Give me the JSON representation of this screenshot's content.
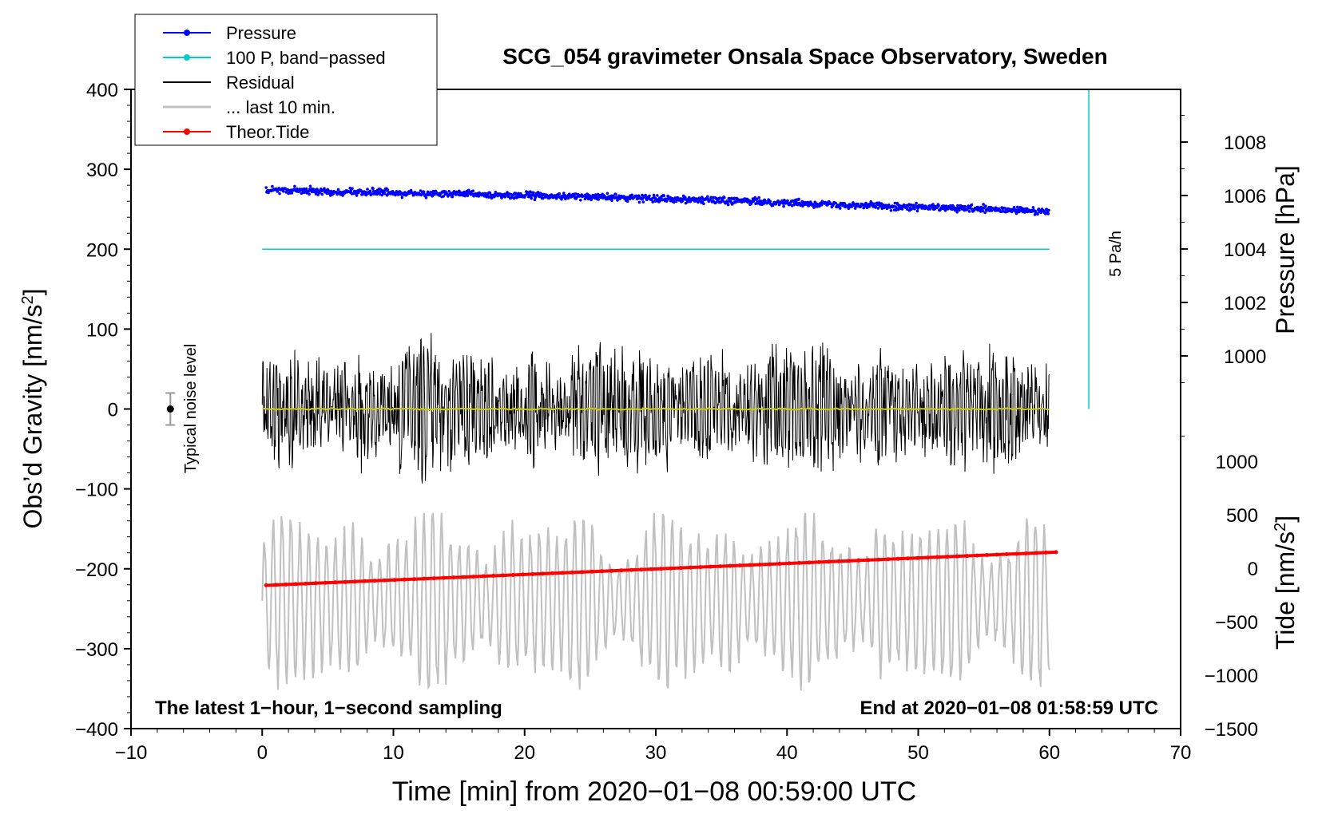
{
  "chart_data": {
    "type": "line",
    "title": "SCG_054 gravimeter Onsala Space Observatory, Sweden",
    "xlabel": "Time [min] from 2020−01−08 00:59:00 UTC",
    "ylabel_left": "Obs’d Gravity [nm/s",
    "ylabel_left_sup": "2",
    "ylabel_left_end": "]",
    "ylabel_pressure": "Pressure [hPa]",
    "ylabel_tide": "Tide [nm/s",
    "ylabel_tide_sup": "2",
    "ylabel_tide_end": "]",
    "xlim": [
      -10,
      70
    ],
    "ylim_left": [
      -400,
      400
    ],
    "pressure_ylim_labels": [
      1000,
      1008
    ],
    "tide_ylim_labels": [
      -1500,
      1000
    ],
    "x_ticks": [
      -10,
      0,
      10,
      20,
      30,
      40,
      50,
      60,
      70
    ],
    "x_tick_labels": [
      "−10",
      "0",
      "10",
      "20",
      "30",
      "40",
      "50",
      "60",
      "70"
    ],
    "y_ticks_left": [
      400,
      300,
      200,
      100,
      0,
      -100,
      -200,
      -300,
      -400
    ],
    "y_tick_labels_left": [
      "400",
      "300",
      "200",
      "100",
      "0",
      "−100",
      "−200",
      "−300",
      "−400"
    ],
    "pressure_ticks": [
      1008,
      1006,
      1004,
      1002,
      1000
    ],
    "pressure_tick_labels": [
      "1008",
      "1006",
      "1004",
      "1002",
      "1000"
    ],
    "tide_ticks": [
      1000,
      500,
      0,
      -500,
      -1000,
      -1500
    ],
    "tide_tick_labels": [
      "1000",
      "500",
      "0",
      "−500",
      "−1000",
      "−1500"
    ],
    "legend": {
      "position": "top-left",
      "entries": [
        {
          "label": "Pressure",
          "color": "#0000ff",
          "marker": true
        },
        {
          "label": "100 P, band−passed",
          "color": "#00cccc",
          "marker": true
        },
        {
          "label": "Residual",
          "color": "#000000",
          "marker": false
        },
        {
          "label": "... last 10 min.",
          "color": "#c0c0c0",
          "marker": false
        },
        {
          "label": "Theor.Tide",
          "color": "#ff0000",
          "marker": true
        }
      ]
    },
    "annotations": {
      "left_footer": "The latest 1−hour, 1−second sampling",
      "right_footer": "End at 2020−01−08 01:58:59 UTC",
      "noise_label": "Typical noise level",
      "rate_label": "5 Pa/h"
    },
    "noise_bar": {
      "x": -7,
      "center": 0,
      "halfwidth": 20
    },
    "series": [
      {
        "name": "Pressure",
        "axis": "pressure_hPa",
        "color": "#0000ff",
        "x_range": [
          0.3,
          60
        ],
        "start": 1006.2,
        "mid": 1005.9,
        "end": 1005.4,
        "scatter": 0.15
      },
      {
        "name": "100 P, band-passed",
        "axis": "gravity",
        "color": "#00cccc",
        "x_range": [
          0,
          60
        ],
        "value": 200
      },
      {
        "name": "Residual",
        "axis": "gravity",
        "color": "#000000",
        "x_range": [
          0,
          60
        ],
        "typical_amplitude": 60,
        "max": 170,
        "min": -168
      },
      {
        "name": "Residual (smoothed)",
        "axis": "gravity",
        "color": "#cccc00",
        "x_range": [
          0,
          60
        ],
        "value": 0
      },
      {
        "name": "... last 10 min.",
        "axis": "gravity",
        "color": "#c0c0c0",
        "x_range": [
          0,
          60
        ],
        "center": -240,
        "typical_amplitude": 70,
        "max": -130,
        "min": -415
      },
      {
        "name": "Theor.Tide",
        "axis": "tide_nm_s2",
        "color": "#ff0000",
        "x": [
          0.3,
          60.5
        ],
        "values": [
          -160,
          150
        ]
      },
      {
        "name": "5 Pa/h rate line",
        "axis": "gravity",
        "color": "#00cccc",
        "x": [
          63,
          63
        ],
        "values": [
          400,
          0
        ]
      }
    ]
  }
}
